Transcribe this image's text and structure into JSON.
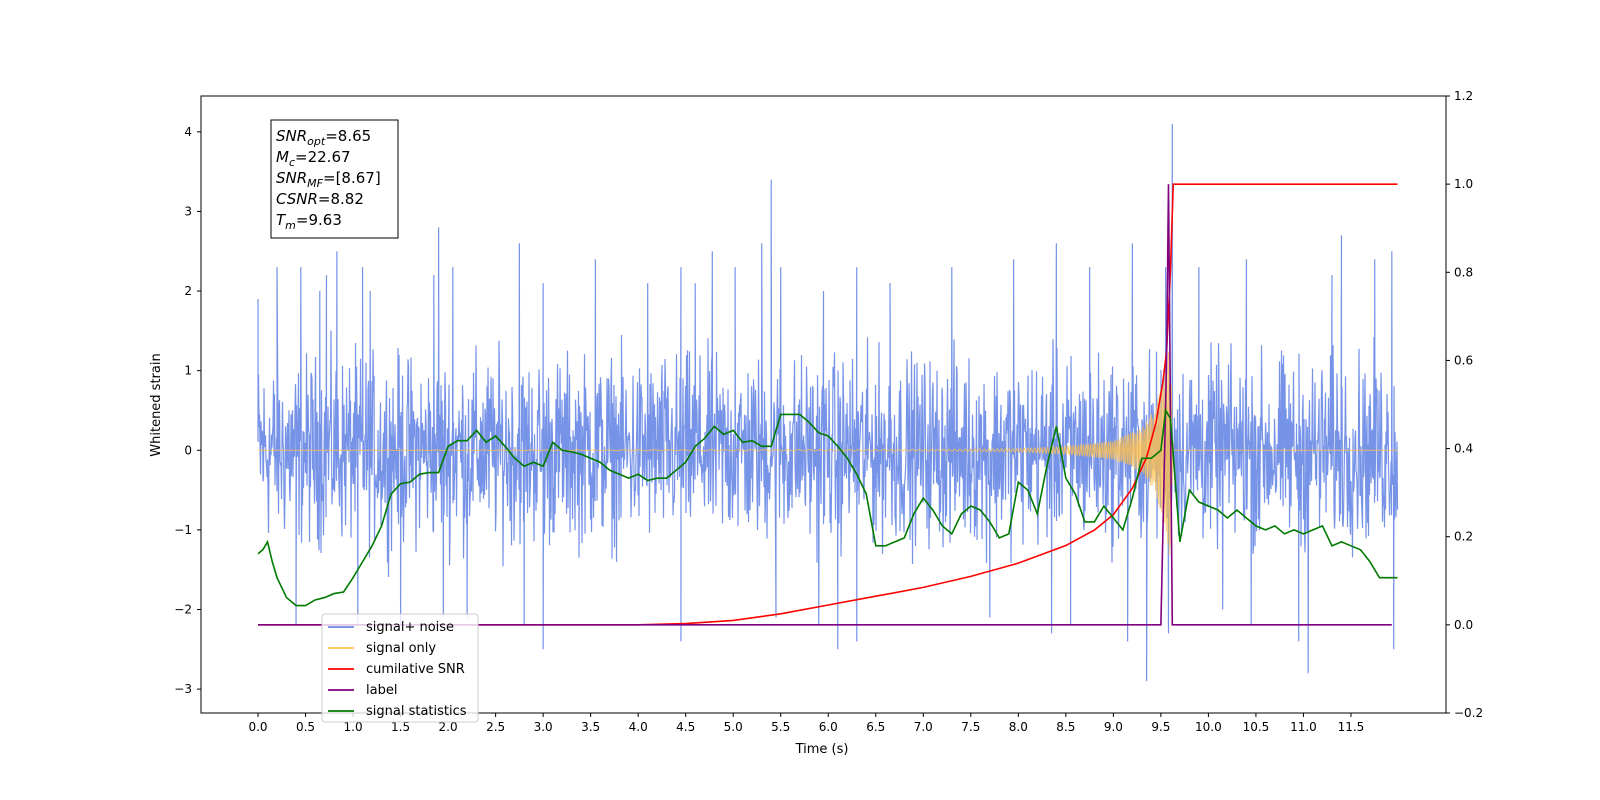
{
  "chart_data": {
    "type": "line",
    "xlabel": "Time (s)",
    "ylabel": "Whitened strain",
    "xlim": [
      -0.6,
      12.5
    ],
    "ylim": [
      -3.3,
      4.45
    ],
    "y2lim": [
      -0.2,
      1.2
    ],
    "x_ticks": [
      "0.0",
      "0.5",
      "1.0",
      "1.5",
      "2.0",
      "2.5",
      "3.0",
      "3.5",
      "4.0",
      "4.5",
      "5.0",
      "5.5",
      "6.0",
      "6.5",
      "7.0",
      "7.5",
      "8.0",
      "8.5",
      "9.0",
      "9.5",
      "10.0",
      "10.5",
      "11.0",
      "11.5"
    ],
    "x_tick_values": [
      0.0,
      0.5,
      1.0,
      1.5,
      2.0,
      2.5,
      3.0,
      3.5,
      4.0,
      4.5,
      5.0,
      5.5,
      6.0,
      6.5,
      7.0,
      7.5,
      8.0,
      8.5,
      9.0,
      9.5,
      10.0,
      10.5,
      11.0,
      11.5
    ],
    "y_ticks": [
      "−3",
      "−2",
      "−1",
      "0",
      "1",
      "2",
      "3",
      "4"
    ],
    "y_tick_values": [
      -3,
      -2,
      -1,
      0,
      1,
      2,
      3,
      4
    ],
    "y2_ticks": [
      "−0.2",
      "0.0",
      "0.2",
      "0.4",
      "0.6",
      "0.8",
      "1.0",
      "1.2"
    ],
    "y2_tick_values": [
      -0.2,
      0.0,
      0.2,
      0.4,
      0.6,
      0.8,
      1.0,
      1.2
    ],
    "grid": false,
    "legend_placement": "lower-left",
    "legend": [
      {
        "label": "signal+ noise",
        "color": "#6a8ae6"
      },
      {
        "label": "signal only",
        "color": "#ffc04d"
      },
      {
        "label": "cumilative SNR",
        "color": "#ff0000"
      },
      {
        "label": "label",
        "color": "#800080"
      },
      {
        "label": "signal statistics",
        "color": "#007a00"
      }
    ],
    "annotation": {
      "lines": [
        {
          "sym": "SNR",
          "sub": "opt",
          "val": "=8.65"
        },
        {
          "sym": "M",
          "sub": "c",
          "val": "=22.67"
        },
        {
          "sym": "SNR",
          "sub": "MF",
          "val": "=[8.67]"
        },
        {
          "sym": "CSNR",
          "sub": "",
          "val": "=8.82"
        },
        {
          "sym": "T",
          "sub": "m",
          "val": "=9.63"
        }
      ]
    },
    "series": [
      {
        "name": "signal+ noise",
        "axis": "left",
        "color": "#6a8ae6",
        "x_range": [
          0.0,
          11.99
        ],
        "level": [
          -1.6,
          1.6
        ],
        "spikes": [
          [
            0.0,
            1.9
          ],
          [
            0.2,
            2.3
          ],
          [
            0.45,
            2.3
          ],
          [
            0.65,
            2.0
          ],
          [
            0.72,
            2.2
          ],
          [
            0.83,
            2.5
          ],
          [
            1.1,
            2.3
          ],
          [
            1.18,
            2.0
          ],
          [
            1.85,
            2.2
          ],
          [
            1.9,
            2.8
          ],
          [
            2.05,
            2.3
          ],
          [
            2.75,
            2.6
          ],
          [
            3.0,
            2.1
          ],
          [
            3.55,
            2.4
          ],
          [
            4.1,
            2.1
          ],
          [
            4.45,
            2.3
          ],
          [
            4.6,
            2.1
          ],
          [
            4.78,
            2.5
          ],
          [
            5.02,
            2.3
          ],
          [
            5.3,
            2.6
          ],
          [
            5.4,
            3.4
          ],
          [
            5.5,
            2.3
          ],
          [
            5.95,
            2.0
          ],
          [
            6.3,
            2.3
          ],
          [
            6.65,
            2.1
          ],
          [
            7.3,
            2.3
          ],
          [
            7.95,
            2.4
          ],
          [
            8.4,
            2.6
          ],
          [
            8.75,
            2.3
          ],
          [
            9.2,
            2.6
          ],
          [
            9.55,
            2.3
          ],
          [
            9.62,
            4.1
          ],
          [
            9.9,
            2.3
          ],
          [
            10.4,
            2.4
          ],
          [
            11.3,
            2.2
          ],
          [
            11.4,
            2.7
          ],
          [
            11.75,
            2.4
          ],
          [
            11.93,
            2.5
          ],
          [
            0.4,
            -2.2
          ],
          [
            1.05,
            -2.2
          ],
          [
            1.5,
            -2.2
          ],
          [
            1.95,
            -2.1
          ],
          [
            2.2,
            -2.1
          ],
          [
            2.8,
            -2.2
          ],
          [
            3.0,
            -2.5
          ],
          [
            4.45,
            -2.4
          ],
          [
            5.45,
            -2.1
          ],
          [
            5.9,
            -2.2
          ],
          [
            6.1,
            -2.5
          ],
          [
            6.3,
            -2.4
          ],
          [
            7.7,
            -2.1
          ],
          [
            8.35,
            -2.3
          ],
          [
            8.55,
            -2.2
          ],
          [
            9.15,
            -2.4
          ],
          [
            9.35,
            -2.9
          ],
          [
            9.58,
            -2.3
          ],
          [
            10.15,
            -2.0
          ],
          [
            10.45,
            -2.2
          ],
          [
            10.95,
            -2.4
          ],
          [
            11.05,
            -2.8
          ],
          [
            11.95,
            -2.5
          ]
        ]
      },
      {
        "name": "signal only",
        "axis": "left",
        "color": "#ffc04d",
        "x_range": [
          0.0,
          11.99
        ],
        "envelope": [
          [
            0.0,
            0.0
          ],
          [
            7.0,
            0.01
          ],
          [
            8.0,
            0.02
          ],
          [
            8.5,
            0.05
          ],
          [
            9.0,
            0.12
          ],
          [
            9.3,
            0.28
          ],
          [
            9.45,
            0.55
          ],
          [
            9.55,
            1.1
          ],
          [
            9.6,
            1.4
          ],
          [
            9.63,
            0.0
          ],
          [
            11.99,
            0.0
          ]
        ]
      },
      {
        "name": "cumilative SNR",
        "axis": "right",
        "color": "#ff0000",
        "points": [
          [
            0.0,
            0.0
          ],
          [
            4.0,
            0.0
          ],
          [
            4.5,
            0.003
          ],
          [
            5.0,
            0.01
          ],
          [
            5.5,
            0.025
          ],
          [
            6.0,
            0.045
          ],
          [
            6.5,
            0.065
          ],
          [
            7.0,
            0.085
          ],
          [
            7.5,
            0.11
          ],
          [
            8.0,
            0.14
          ],
          [
            8.5,
            0.18
          ],
          [
            8.8,
            0.215
          ],
          [
            9.0,
            0.25
          ],
          [
            9.2,
            0.31
          ],
          [
            9.35,
            0.38
          ],
          [
            9.45,
            0.46
          ],
          [
            9.52,
            0.55
          ],
          [
            9.56,
            0.62
          ],
          [
            9.6,
            0.8
          ],
          [
            9.63,
            1.0
          ],
          [
            11.99,
            1.0
          ]
        ]
      },
      {
        "name": "label",
        "axis": "right",
        "color": "#800080",
        "points": [
          [
            0.0,
            0.0
          ],
          [
            9.5,
            0.0
          ],
          [
            9.56,
            0.6
          ],
          [
            9.58,
            1.0
          ],
          [
            9.6,
            0.5
          ],
          [
            9.62,
            0.0
          ],
          [
            11.93,
            0.0
          ]
        ]
      },
      {
        "name": "signal statistics",
        "axis": "left",
        "color": "#007a00",
        "points": [
          [
            0.0,
            -1.3
          ],
          [
            0.05,
            -1.25
          ],
          [
            0.1,
            -1.15
          ],
          [
            0.15,
            -1.4
          ],
          [
            0.2,
            -1.6
          ],
          [
            0.3,
            -1.85
          ],
          [
            0.4,
            -1.95
          ],
          [
            0.5,
            -1.95
          ],
          [
            0.6,
            -1.88
          ],
          [
            0.7,
            -1.85
          ],
          [
            0.8,
            -1.8
          ],
          [
            0.9,
            -1.78
          ],
          [
            1.0,
            -1.6
          ],
          [
            1.1,
            -1.4
          ],
          [
            1.2,
            -1.2
          ],
          [
            1.3,
            -0.95
          ],
          [
            1.35,
            -0.75
          ],
          [
            1.4,
            -0.55
          ],
          [
            1.5,
            -0.42
          ],
          [
            1.6,
            -0.4
          ],
          [
            1.7,
            -0.3
          ],
          [
            1.8,
            -0.28
          ],
          [
            1.9,
            -0.28
          ],
          [
            2.0,
            0.05
          ],
          [
            2.1,
            0.12
          ],
          [
            2.2,
            0.12
          ],
          [
            2.3,
            0.25
          ],
          [
            2.4,
            0.1
          ],
          [
            2.5,
            0.18
          ],
          [
            2.6,
            0.05
          ],
          [
            2.7,
            -0.1
          ],
          [
            2.8,
            -0.2
          ],
          [
            2.9,
            -0.15
          ],
          [
            3.0,
            -0.2
          ],
          [
            3.1,
            0.1
          ],
          [
            3.2,
            0.0
          ],
          [
            3.3,
            -0.02
          ],
          [
            3.4,
            -0.05
          ],
          [
            3.5,
            -0.1
          ],
          [
            3.6,
            -0.15
          ],
          [
            3.7,
            -0.25
          ],
          [
            3.8,
            -0.3
          ],
          [
            3.9,
            -0.35
          ],
          [
            4.0,
            -0.3
          ],
          [
            4.1,
            -0.38
          ],
          [
            4.2,
            -0.35
          ],
          [
            4.3,
            -0.35
          ],
          [
            4.4,
            -0.25
          ],
          [
            4.5,
            -0.15
          ],
          [
            4.6,
            0.05
          ],
          [
            4.7,
            0.15
          ],
          [
            4.8,
            0.3
          ],
          [
            4.9,
            0.2
          ],
          [
            5.0,
            0.25
          ],
          [
            5.1,
            0.1
          ],
          [
            5.2,
            0.12
          ],
          [
            5.3,
            0.05
          ],
          [
            5.4,
            0.05
          ],
          [
            5.5,
            0.45
          ],
          [
            5.6,
            0.45
          ],
          [
            5.7,
            0.45
          ],
          [
            5.8,
            0.35
          ],
          [
            5.9,
            0.22
          ],
          [
            6.0,
            0.18
          ],
          [
            6.1,
            0.05
          ],
          [
            6.2,
            -0.1
          ],
          [
            6.3,
            -0.3
          ],
          [
            6.4,
            -0.55
          ],
          [
            6.5,
            -1.2
          ],
          [
            6.6,
            -1.2
          ],
          [
            6.7,
            -1.15
          ],
          [
            6.8,
            -1.1
          ],
          [
            6.9,
            -0.8
          ],
          [
            7.0,
            -0.6
          ],
          [
            7.1,
            -0.75
          ],
          [
            7.2,
            -0.95
          ],
          [
            7.3,
            -1.05
          ],
          [
            7.4,
            -0.8
          ],
          [
            7.5,
            -0.7
          ],
          [
            7.6,
            -0.75
          ],
          [
            7.7,
            -0.9
          ],
          [
            7.8,
            -1.1
          ],
          [
            7.9,
            -1.05
          ],
          [
            8.0,
            -0.4
          ],
          [
            8.1,
            -0.5
          ],
          [
            8.2,
            -0.8
          ],
          [
            8.3,
            -0.2
          ],
          [
            8.4,
            0.3
          ],
          [
            8.5,
            -0.35
          ],
          [
            8.6,
            -0.55
          ],
          [
            8.7,
            -0.9
          ],
          [
            8.8,
            -0.9
          ],
          [
            8.9,
            -0.7
          ],
          [
            9.0,
            -0.85
          ],
          [
            9.1,
            -1.0
          ],
          [
            9.2,
            -0.6
          ],
          [
            9.3,
            -0.1
          ],
          [
            9.4,
            -0.1
          ],
          [
            9.5,
            0.0
          ],
          [
            9.55,
            0.5
          ],
          [
            9.6,
            0.4
          ],
          [
            9.7,
            -1.15
          ],
          [
            9.8,
            -0.5
          ],
          [
            9.9,
            -0.65
          ],
          [
            10.0,
            -0.7
          ],
          [
            10.1,
            -0.75
          ],
          [
            10.2,
            -0.85
          ],
          [
            10.3,
            -0.75
          ],
          [
            10.4,
            -0.85
          ],
          [
            10.5,
            -0.95
          ],
          [
            10.6,
            -1.0
          ],
          [
            10.7,
            -0.95
          ],
          [
            10.8,
            -1.05
          ],
          [
            10.9,
            -1.0
          ],
          [
            11.0,
            -1.05
          ],
          [
            11.1,
            -1.0
          ],
          [
            11.2,
            -0.95
          ],
          [
            11.3,
            -1.2
          ],
          [
            11.4,
            -1.15
          ],
          [
            11.5,
            -1.2
          ],
          [
            11.6,
            -1.25
          ],
          [
            11.7,
            -1.4
          ],
          [
            11.8,
            -1.6
          ],
          [
            11.9,
            -1.6
          ],
          [
            11.99,
            -1.6
          ]
        ]
      }
    ]
  }
}
